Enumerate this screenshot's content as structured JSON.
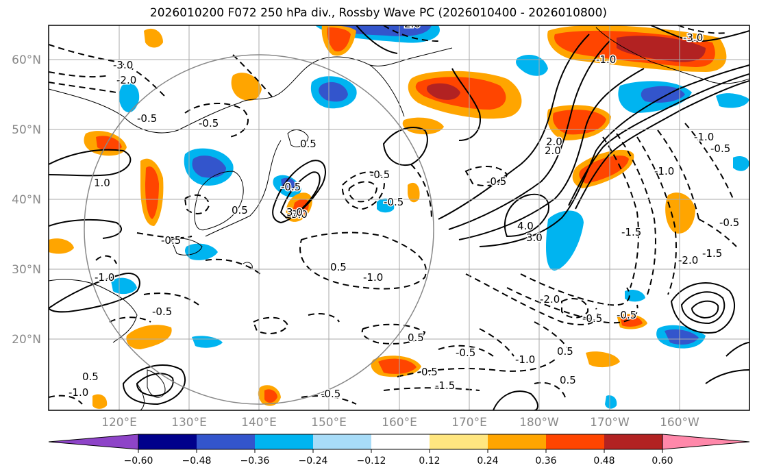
{
  "title": "2026010200 F072 250 hPa div., Rossby Wave PC (2026010400 - 2026010800)",
  "lat_labels": [
    "60°N",
    "50°N",
    "40°N",
    "30°N",
    "20°N"
  ],
  "lon_labels": [
    "120°E",
    "130°E",
    "140°E",
    "150°E",
    "160°E",
    "170°E",
    "180°W",
    "170°W",
    "160°W"
  ],
  "colorbar": {
    "ticks": [
      "−0.60",
      "−0.48",
      "−0.36",
      "−0.24",
      "−0.12",
      "0.12",
      "0.24",
      "0.36",
      "0.48",
      "0.60"
    ],
    "colors": [
      "#8e44c8",
      "#00008b",
      "#3355cc",
      "#00b4f0",
      "#a8dcf8",
      "#ffffff",
      "#ffe680",
      "#ffa500",
      "#ff4500",
      "#b22222",
      "#ff88aa"
    ]
  },
  "contour_labels": [
    "-3.0",
    "-2.0",
    "-0.5",
    "-0.5",
    "0.5",
    "1.0",
    "-0.5",
    "0.5",
    "-0.5",
    "3.0",
    "-1.0",
    "-0.5",
    "-0.5",
    "4.0",
    "3.0",
    "2.0",
    "-0.5",
    "0.5",
    "-1.0",
    "-1.5",
    "-2.0",
    "-0.5",
    "-1.0",
    "0.5",
    "-1.5",
    "0.5",
    "-0.5",
    "-0.5",
    "0.5",
    "-2.0",
    "-1.0",
    "0.5",
    "-1.5",
    "-0.5",
    "-1.0",
    "-3.0",
    "3.0",
    "-0.5",
    "2.0",
    "-1.0",
    "-3.0",
    "2.0",
    "-0.5",
    "-1.0",
    "0.5",
    "-0.5"
  ]
}
